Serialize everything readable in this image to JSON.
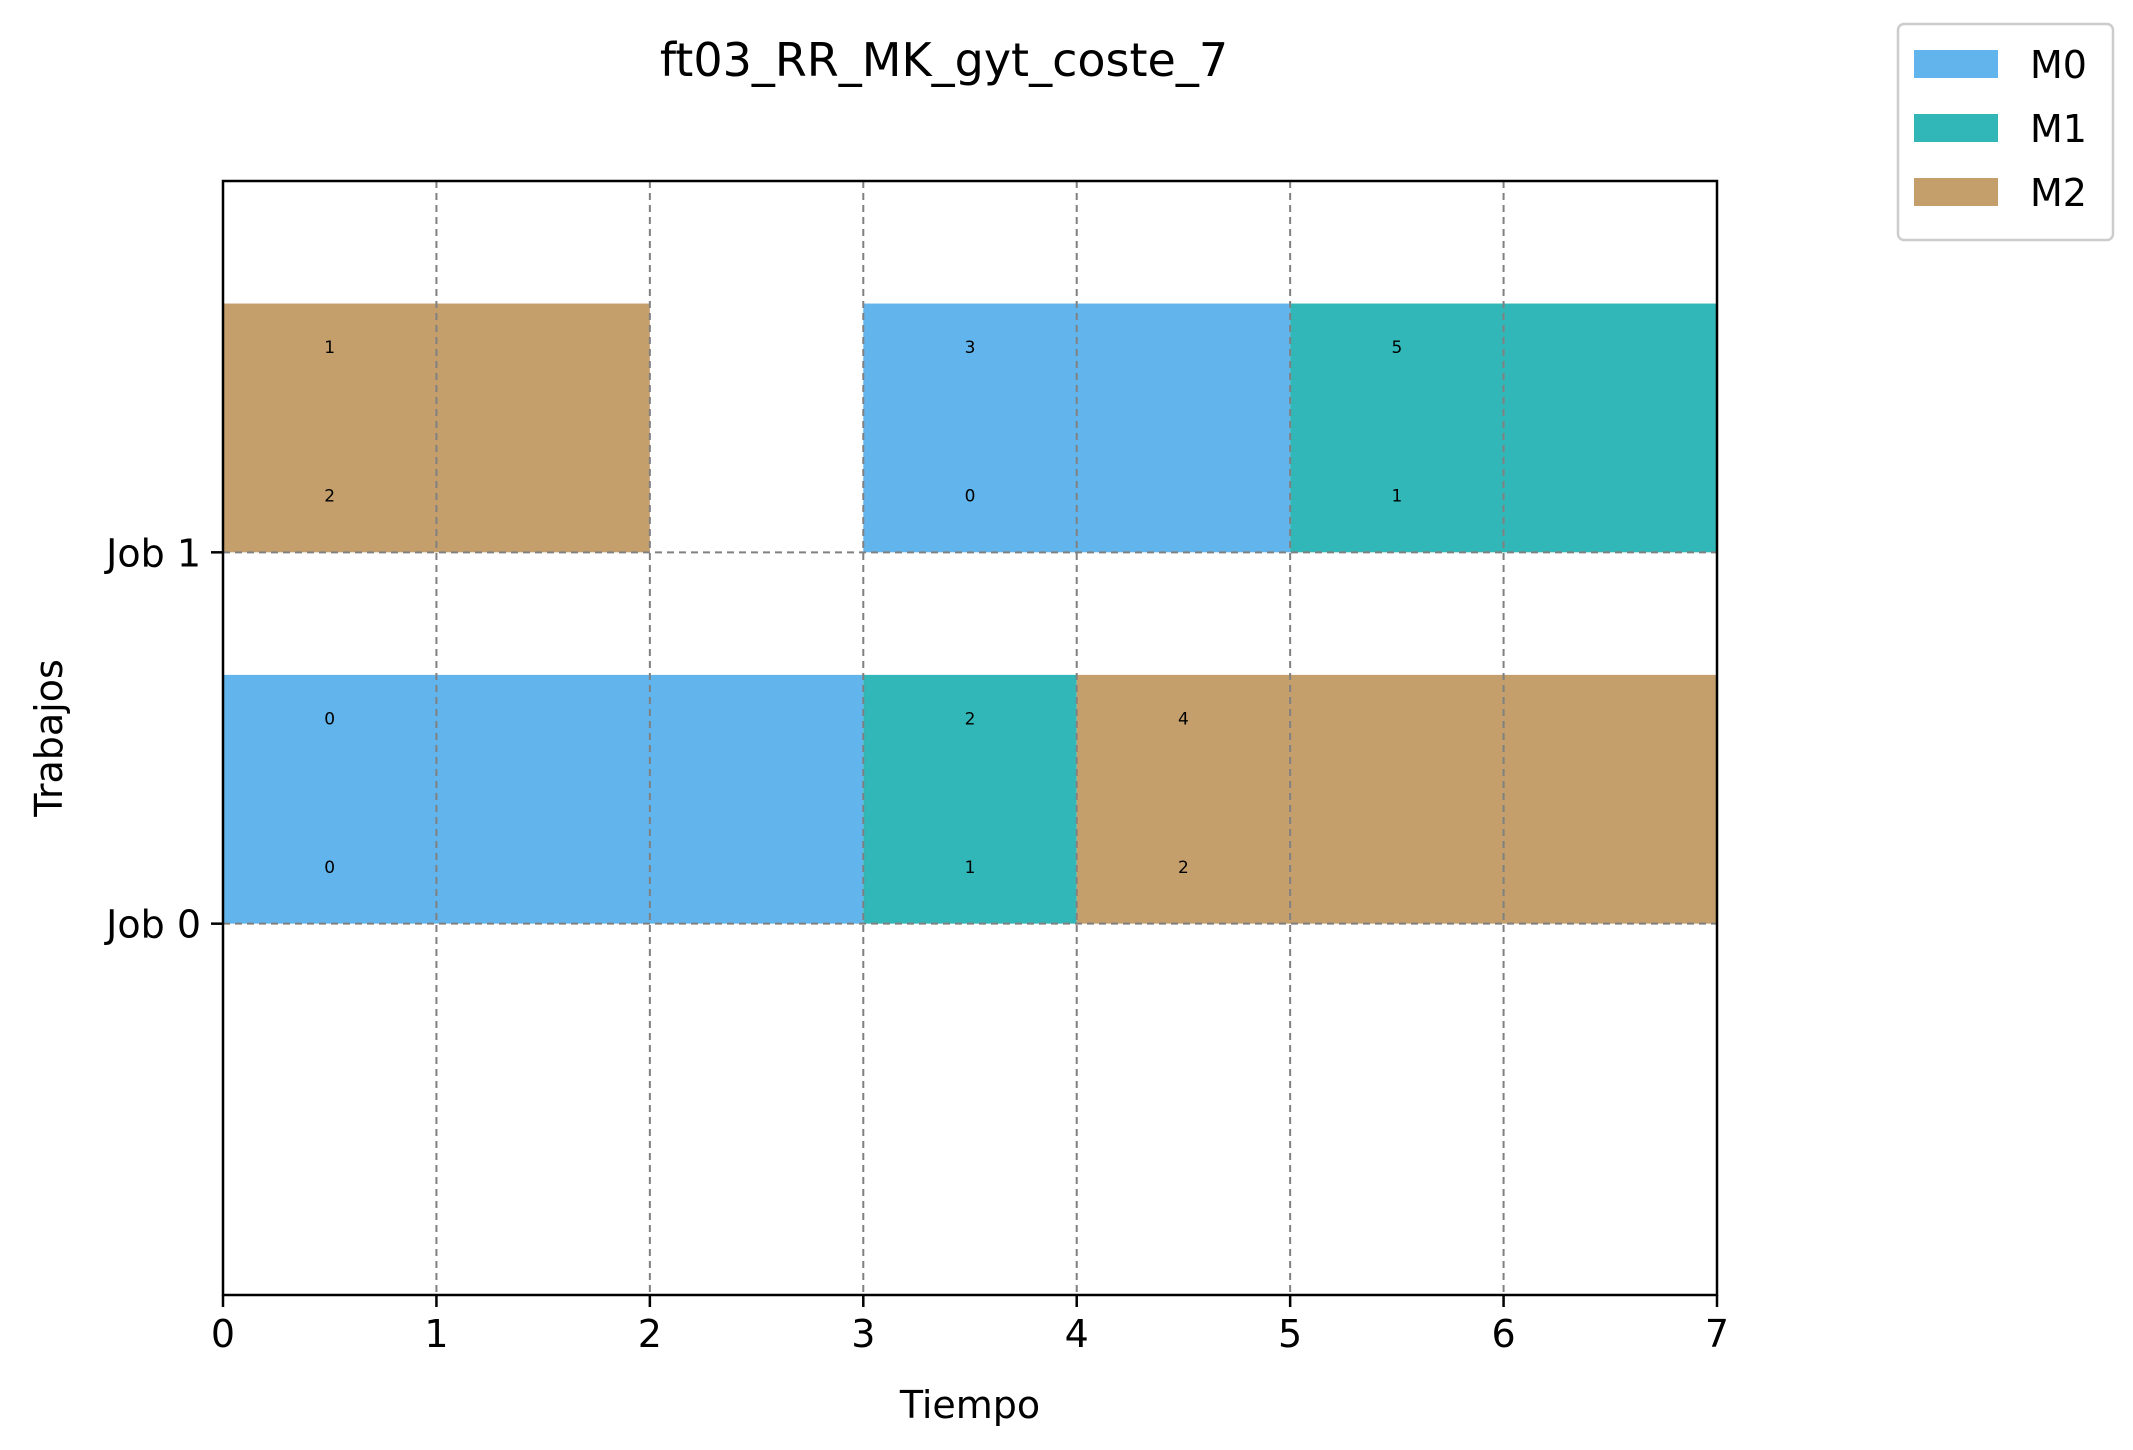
{
  "chart_data": {
    "type": "gantt",
    "title": "ft03_RR_MK_gyt_coste_7",
    "xlabel": "Tiempo",
    "ylabel": "Trabajos",
    "xlim": [
      0,
      7
    ],
    "xticks": [
      "0",
      "1",
      "2",
      "3",
      "4",
      "5",
      "6",
      "7"
    ],
    "yticks": [
      "Job 0",
      "Job 1"
    ],
    "grid": true,
    "legend_position": "top-right, outside plot",
    "legend": [
      {
        "name": "M0",
        "color": "#62b5ec"
      },
      {
        "name": "M1",
        "color": "#32b7b9"
      },
      {
        "name": "M2",
        "color": "#c49f6b"
      }
    ],
    "tasks": [
      {
        "job": 0,
        "machine": "M0",
        "start": 0,
        "end": 3,
        "labels": [
          "0",
          "0"
        ]
      },
      {
        "job": 0,
        "machine": "M1",
        "start": 3,
        "end": 4,
        "labels": [
          "2",
          "1"
        ]
      },
      {
        "job": 0,
        "machine": "M2",
        "start": 4,
        "end": 7,
        "labels": [
          "4",
          "2"
        ]
      },
      {
        "job": 1,
        "machine": "M2",
        "start": 0,
        "end": 2,
        "labels": [
          "1",
          "2"
        ]
      },
      {
        "job": 1,
        "machine": "M0",
        "start": 3,
        "end": 5,
        "labels": [
          "3",
          "0"
        ]
      },
      {
        "job": 1,
        "machine": "M1",
        "start": 5,
        "end": 7,
        "labels": [
          "5",
          "1"
        ]
      }
    ]
  }
}
